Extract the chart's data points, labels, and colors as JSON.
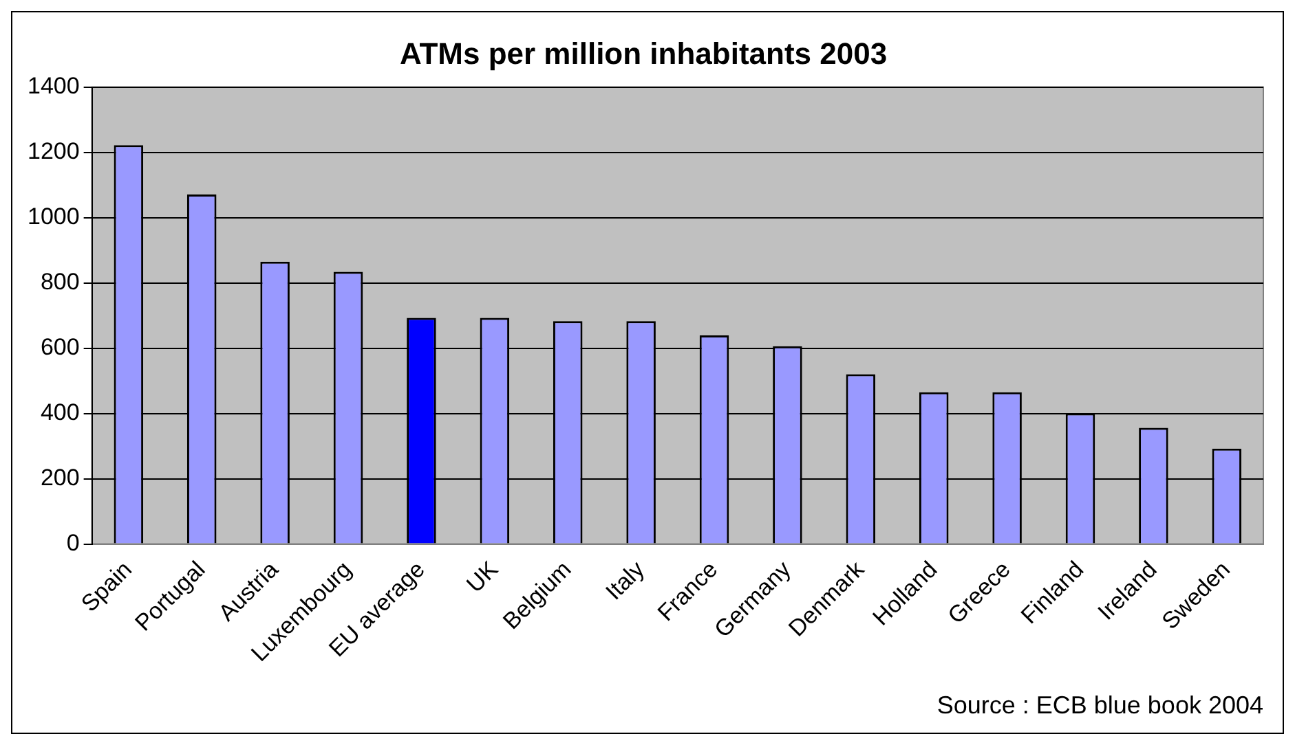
{
  "chart_data": {
    "type": "bar",
    "title": "ATMs per million inhabitants 2003",
    "categories": [
      "Spain",
      "Portugal",
      "Austria",
      "Luxembourg",
      "EU average",
      "UK",
      "Belgium",
      "Italy",
      "France",
      "Germany",
      "Denmark",
      "Holland",
      "Greece",
      "Finland",
      "Ireland",
      "Sweden"
    ],
    "values": [
      1222,
      1071,
      865,
      834,
      693,
      693,
      683,
      683,
      639,
      606,
      520,
      465,
      465,
      400,
      356,
      292
    ],
    "colors": [
      "#9999ff",
      "#9999ff",
      "#9999ff",
      "#9999ff",
      "#0000ff",
      "#9999ff",
      "#9999ff",
      "#9999ff",
      "#9999ff",
      "#9999ff",
      "#9999ff",
      "#9999ff",
      "#9999ff",
      "#9999ff",
      "#9999ff",
      "#9999ff"
    ],
    "ylim": [
      0,
      1400
    ],
    "yticks": [
      0,
      200,
      400,
      600,
      800,
      1000,
      1200,
      1400
    ],
    "grid": "y",
    "legend": false,
    "annotations": [
      "Source : ECB blue book 2004"
    ]
  }
}
